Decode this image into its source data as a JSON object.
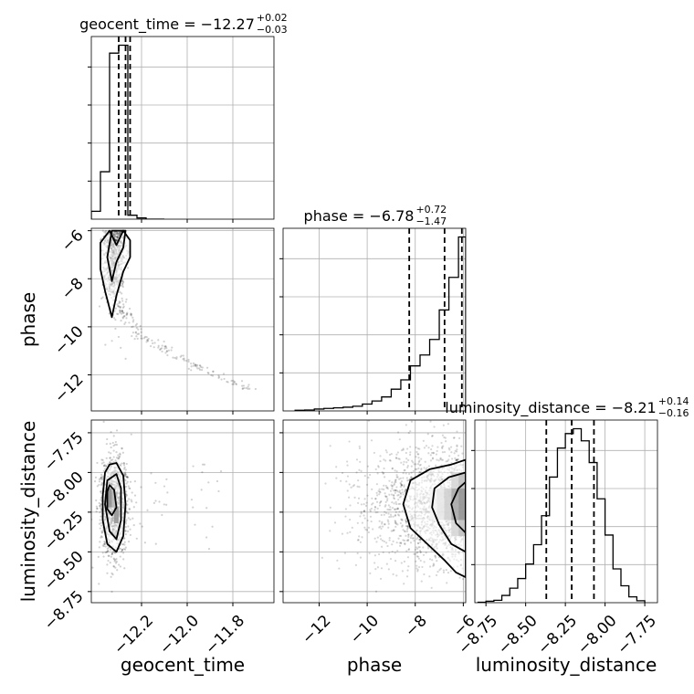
{
  "chart_data": {
    "type": "corner",
    "parameters": [
      "geocent_time",
      "phase",
      "luminosity_distance"
    ],
    "titles": [
      {
        "param": "geocent_time",
        "prefix": "geocent_time = −12.27",
        "plus": "+0.02",
        "minus": "−0.03",
        "median": -12.27,
        "upper_err": 0.02,
        "lower_err": 0.03
      },
      {
        "param": "phase",
        "prefix": "phase = −6.78",
        "plus": "+0.72",
        "minus": "−1.47",
        "median": -6.78,
        "upper_err": 0.72,
        "lower_err": 1.47
      },
      {
        "param": "luminosity_distance",
        "prefix": "luminosity_distance = −8.21",
        "plus": "+0.14",
        "minus": "−0.16",
        "median": -8.21,
        "upper_err": 0.14,
        "lower_err": 0.16
      }
    ],
    "ranges": {
      "geocent_time": [
        -12.42,
        -11.62
      ],
      "phase": [
        -13.5,
        -5.9
      ],
      "luminosity_distance": [
        -8.82,
        -7.67
      ]
    },
    "ticks": {
      "geocent_time": {
        "values": [
          -12.2,
          -12.0,
          -11.8
        ],
        "labels": [
          "−12.2",
          "−12.0",
          "−11.8"
        ]
      },
      "phase": {
        "values": [
          -12,
          -10,
          -8,
          -6
        ],
        "labels": [
          "−12",
          "−10",
          "−8",
          "−6"
        ]
      },
      "luminosity_distance": {
        "values": [
          -8.75,
          -8.5,
          -8.25,
          -8.0,
          -7.75
        ],
        "labels": [
          "−8.75",
          "−8.50",
          "−8.25",
          "−8.00",
          "−7.75"
        ]
      }
    },
    "quantiles": {
      "geocent_time": [
        -12.3,
        -12.27,
        -12.25
      ],
      "phase": [
        -8.25,
        -6.78,
        -6.06
      ],
      "luminosity_distance": [
        -8.37,
        -8.21,
        -8.07
      ]
    },
    "histograms": {
      "geocent_time": {
        "edges": [
          -12.42,
          -12.38,
          -12.34,
          -12.3,
          -12.26,
          -12.22,
          -12.18,
          -12.14,
          -12.1
        ],
        "counts": [
          0.2,
          1.2,
          4.2,
          4.4,
          0.1,
          0.03,
          0.0,
          0.0
        ]
      },
      "phase": {
        "edges": [
          -13.0,
          -12.6,
          -12.2,
          -11.8,
          -11.4,
          -11.0,
          -10.6,
          -10.2,
          -9.8,
          -9.4,
          -9.0,
          -8.6,
          -8.2,
          -7.8,
          -7.4,
          -7.0,
          -6.6,
          -6.2,
          -5.9
        ],
        "counts": [
          0.02,
          0.03,
          0.06,
          0.08,
          0.1,
          0.12,
          0.15,
          0.22,
          0.32,
          0.45,
          0.7,
          1.0,
          1.45,
          1.8,
          2.3,
          3.25,
          4.3,
          5.6
        ]
      },
      "luminosity_distance": {
        "edges": [
          -8.8,
          -8.75,
          -8.7,
          -8.65,
          -8.6,
          -8.55,
          -8.5,
          -8.45,
          -8.4,
          -8.35,
          -8.3,
          -8.25,
          -8.2,
          -8.15,
          -8.1,
          -8.05,
          -8.0,
          -7.95,
          -7.9,
          -7.85,
          -7.8,
          -7.75
        ],
        "counts": [
          0.01,
          0.03,
          0.05,
          0.15,
          0.3,
          0.5,
          0.8,
          1.2,
          1.8,
          2.6,
          3.2,
          3.5,
          3.6,
          3.35,
          2.9,
          2.15,
          1.4,
          0.7,
          0.35,
          0.12,
          0.04
        ]
      }
    },
    "contours": {
      "geocent_time_vs_phase": [
        {
          "level": "outer",
          "points": [
            [
              -12.38,
              -6.5
            ],
            [
              -12.38,
              -7.6
            ],
            [
              -12.36,
              -8.5
            ],
            [
              -12.33,
              -9.6
            ],
            [
              -12.31,
              -8.7
            ],
            [
              -12.28,
              -7.7
            ],
            [
              -12.25,
              -7.1
            ],
            [
              -12.25,
              -6.4
            ],
            [
              -12.28,
              -6.0
            ],
            [
              -12.31,
              -6.6
            ],
            [
              -12.34,
              -6.0
            ]
          ]
        },
        {
          "level": "inner",
          "points": [
            [
              -12.33,
              -6.0
            ],
            [
              -12.35,
              -7.1
            ],
            [
              -12.33,
              -8.1
            ],
            [
              -12.31,
              -7.3
            ],
            [
              -12.28,
              -6.7
            ],
            [
              -12.27,
              -6.0
            ]
          ]
        }
      ],
      "geocent_time_vs_luminosity_distance": [
        {
          "level": "outer",
          "points": [
            [
              -12.36,
              -8.0
            ],
            [
              -12.37,
              -8.15
            ],
            [
              -12.37,
              -8.3
            ],
            [
              -12.35,
              -8.45
            ],
            [
              -12.31,
              -8.5
            ],
            [
              -12.28,
              -8.4
            ],
            [
              -12.27,
              -8.2
            ],
            [
              -12.28,
              -8.02
            ],
            [
              -12.31,
              -7.94
            ],
            [
              -12.34,
              -7.95
            ]
          ]
        },
        {
          "level": "middle",
          "points": [
            [
              -12.35,
              -8.05
            ],
            [
              -12.36,
              -8.2
            ],
            [
              -12.34,
              -8.37
            ],
            [
              -12.31,
              -8.42
            ],
            [
              -12.29,
              -8.3
            ],
            [
              -12.29,
              -8.1
            ],
            [
              -12.31,
              -8.01
            ]
          ]
        },
        {
          "level": "inner",
          "points": [
            [
              -12.35,
              -8.12
            ],
            [
              -12.35,
              -8.23
            ],
            [
              -12.33,
              -8.27
            ],
            [
              -12.31,
              -8.22
            ],
            [
              -12.32,
              -8.11
            ],
            [
              -12.34,
              -8.08
            ]
          ]
        }
      ],
      "phase_vs_luminosity_distance": [
        {
          "level": "outer",
          "points": [
            [
              -5.9,
              -7.92
            ],
            [
              -6.5,
              -7.95
            ],
            [
              -7.4,
              -7.98
            ],
            [
              -8.2,
              -8.05
            ],
            [
              -8.5,
              -8.2
            ],
            [
              -8.2,
              -8.35
            ],
            [
              -7.5,
              -8.45
            ],
            [
              -6.8,
              -8.55
            ],
            [
              -6.3,
              -8.63
            ],
            [
              -5.9,
              -8.66
            ]
          ]
        },
        {
          "level": "middle",
          "points": [
            [
              -5.9,
              -8.0
            ],
            [
              -6.6,
              -8.03
            ],
            [
              -7.2,
              -8.1
            ],
            [
              -7.3,
              -8.22
            ],
            [
              -7.0,
              -8.33
            ],
            [
              -6.5,
              -8.45
            ],
            [
              -5.9,
              -8.5
            ]
          ]
        },
        {
          "level": "inner",
          "points": [
            [
              -5.9,
              -8.06
            ],
            [
              -6.2,
              -8.1
            ],
            [
              -6.5,
              -8.2
            ],
            [
              -6.3,
              -8.32
            ],
            [
              -5.9,
              -8.38
            ]
          ]
        }
      ]
    },
    "density_cells": {
      "phase_vs_luminosity_distance": [
        {
          "x": [
            -6.2,
            -5.9
          ],
          "y": [
            -8.3,
            -8.1
          ],
          "level": 0.95
        },
        {
          "x": [
            -6.5,
            -6.2
          ],
          "y": [
            -8.3,
            -8.1
          ],
          "level": 0.75
        },
        {
          "x": [
            -6.2,
            -5.9
          ],
          "y": [
            -8.1,
            -8.0
          ],
          "level": 0.55
        },
        {
          "x": [
            -6.2,
            -5.9
          ],
          "y": [
            -8.4,
            -8.3
          ],
          "level": 0.55
        },
        {
          "x": [
            -6.8,
            -6.5
          ],
          "y": [
            -8.3,
            -8.1
          ],
          "level": 0.4
        },
        {
          "x": [
            -6.5,
            -6.2
          ],
          "y": [
            -8.1,
            -8.0
          ],
          "level": 0.35
        },
        {
          "x": [
            -6.5,
            -6.2
          ],
          "y": [
            -8.4,
            -8.3
          ],
          "level": 0.35
        },
        {
          "x": [
            -7.1,
            -6.8
          ],
          "y": [
            -8.3,
            -8.1
          ],
          "level": 0.2
        },
        {
          "x": [
            -7.4,
            -7.1
          ],
          "y": [
            -8.3,
            -8.1
          ],
          "level": 0.1
        }
      ],
      "geocent_time_vs_luminosity_distance": [
        {
          "x": [
            -12.35,
            -12.33
          ],
          "y": [
            -8.22,
            -8.1
          ],
          "level": 0.95
        },
        {
          "x": [
            -12.32,
            -12.3
          ],
          "y": [
            -8.32,
            -8.22
          ],
          "level": 0.9
        },
        {
          "x": [
            -12.33,
            -12.31
          ],
          "y": [
            -8.22,
            -8.12
          ],
          "level": 0.6
        }
      ]
    }
  }
}
